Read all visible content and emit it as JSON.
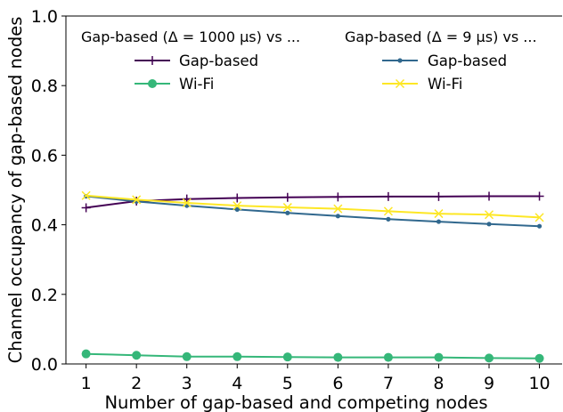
{
  "chart_data": {
    "type": "line",
    "xlabel": "Number of gap-based and competing nodes",
    "ylabel": "Channel occupancy of gap-based nodes",
    "x": [
      1,
      2,
      3,
      4,
      5,
      6,
      7,
      8,
      9,
      10
    ],
    "xlim": [
      0.6,
      10.45
    ],
    "ylim": [
      0.0,
      1.0
    ],
    "yticks": [
      0.0,
      0.2,
      0.4,
      0.6,
      0.8,
      1.0
    ],
    "ytick_labels": [
      "0.0",
      "0.2",
      "0.4",
      "0.6",
      "0.8",
      "1.0"
    ],
    "xtick_labels": [
      "1",
      "2",
      "3",
      "4",
      "5",
      "6",
      "7",
      "8",
      "9",
      "10"
    ],
    "grid": false,
    "legends": [
      {
        "title": "Gap-based (Δ = 1000 μs) vs ...",
        "placement": "top-left",
        "entries": [
          {
            "label": "Gap-based",
            "series": 0
          },
          {
            "label": "Wi-Fi",
            "series": 1
          }
        ]
      },
      {
        "title": "Gap-based (Δ = 9 μs) vs ...",
        "placement": "top-right",
        "entries": [
          {
            "label": "Gap-based",
            "series": 2
          },
          {
            "label": "Wi-Fi",
            "series": 3
          }
        ]
      }
    ],
    "series": [
      {
        "name": "Gap-based",
        "group": "Gap-based (Δ = 1000 μs) vs ...",
        "color": "#440154",
        "marker": "plus",
        "values": [
          0.449,
          0.468,
          0.474,
          0.477,
          0.479,
          0.48,
          0.481,
          0.481,
          0.482,
          0.482
        ]
      },
      {
        "name": "Wi-Fi",
        "group": "Gap-based (Δ = 1000 μs) vs ...",
        "color": "#35b779",
        "marker": "circle",
        "values": [
          0.029,
          0.025,
          0.021,
          0.021,
          0.02,
          0.019,
          0.019,
          0.019,
          0.017,
          0.016
        ]
      },
      {
        "name": "Gap-based",
        "group": "Gap-based (Δ = 9 μs) vs ...",
        "color": "#31688e",
        "marker": "dot",
        "values": [
          0.482,
          0.467,
          0.455,
          0.444,
          0.434,
          0.425,
          0.416,
          0.409,
          0.402,
          0.396
        ]
      },
      {
        "name": "Wi-Fi",
        "group": "Gap-based (Δ = 9 μs) vs ...",
        "color": "#fde725",
        "marker": "x",
        "values": [
          0.484,
          0.472,
          0.463,
          0.455,
          0.45,
          0.446,
          0.439,
          0.432,
          0.429,
          0.421
        ]
      }
    ]
  }
}
